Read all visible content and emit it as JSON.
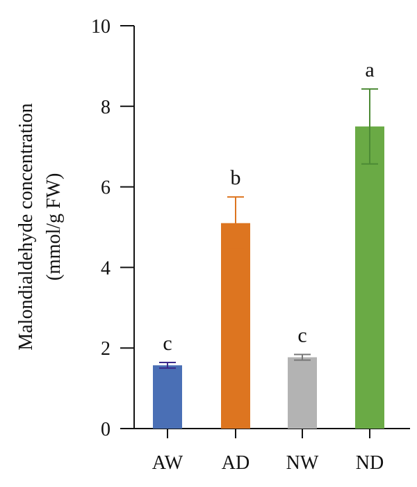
{
  "chart_data": {
    "type": "bar",
    "title": "",
    "xlabel": "",
    "ylabel_lines": [
      "Malondialdehyde concentration",
      "(mmol/g FW)"
    ],
    "ylim": [
      0,
      10
    ],
    "yticks": [
      0,
      2,
      4,
      6,
      8,
      10
    ],
    "categories": [
      "AW",
      "AD",
      "NW",
      "ND"
    ],
    "values": [
      1.57,
      5.1,
      1.77,
      7.5
    ],
    "errors": [
      0.07,
      0.65,
      0.07,
      0.93
    ],
    "significance": [
      "c",
      "b",
      "c",
      "a"
    ],
    "colors": [
      "#4a6fb5",
      "#dd7520",
      "#b3b3b3",
      "#6aaa45"
    ],
    "error_colors": [
      "#3b2a8a",
      "#dd7520",
      "#777777",
      "#4c8a35"
    ],
    "grid": false,
    "legend": "none"
  }
}
